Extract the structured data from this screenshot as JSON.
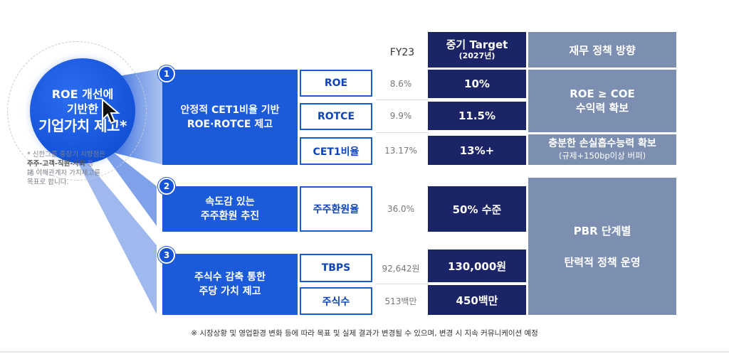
{
  "circle": {
    "line1": "ROE 개선에",
    "line2": "기반한",
    "line3": "기업가치 제고*"
  },
  "note": {
    "line1": "* 신한그룹 중장기 지향점은",
    "line2": "주주-고객-직원-사회",
    "line2_suffix": " 등",
    "line3": "諸 이해관계자 가치제고를",
    "line4": "목표로 합니다."
  },
  "headers": {
    "fy": "FY23",
    "target_line1": "중기 Target",
    "target_line2": "(2027년)",
    "policy": "재무 정책 방향"
  },
  "groups": [
    {
      "number": "1",
      "title_line1": "안정적 CET1비율 기반",
      "title_line2": "ROE·ROTCE 제고",
      "rows": [
        {
          "metric": "ROE",
          "fy23": "8.6%",
          "target": "10%"
        },
        {
          "metric": "ROTCE",
          "fy23": "9.9%",
          "target": "11.5%"
        },
        {
          "metric": "CET1비율",
          "fy23": "13.17%",
          "target": "13%+"
        }
      ]
    },
    {
      "number": "2",
      "title_line1": "속도감 있는",
      "title_line2": "주주환원 추진",
      "rows": [
        {
          "metric": "주주환원율",
          "fy23": "36.0%",
          "target": "50% 수준"
        }
      ]
    },
    {
      "number": "3",
      "title_line1": "주식수 감축 통한",
      "title_line2": "주당 가치 제고",
      "rows": [
        {
          "metric": "TBPS",
          "fy23": "92,642원",
          "target": "130,000원"
        },
        {
          "metric": "주식수",
          "fy23": "513백만",
          "target": "450백만"
        }
      ]
    }
  ],
  "policies": {
    "p1_line1": "ROE ≥ COE",
    "p1_line2": "수익력 확보",
    "p2_line1": "충분한 손실흡수능력 확보",
    "p2_line2": "(규제+150bp이상 버퍼)",
    "p3_line1": "PBR 단계별",
    "p3_line2": "탄력적 정책 운영"
  },
  "footnote": "※ 시장상황 및 영업환경 변화 등에 따라 목표 및 실제 결과가 변경될 수 있으며, 변경 시 지속 커뮤니케이션 예정",
  "colors": {
    "brand_blue": "#1b5ad8",
    "navy": "#1a2466",
    "slate": "#7c8fb0"
  }
}
